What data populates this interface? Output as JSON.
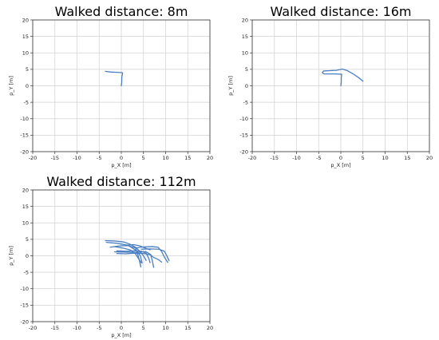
{
  "chart_data": [
    {
      "type": "line",
      "title": "Walked distance: 8m",
      "xlabel": "p_X [m]",
      "ylabel": "p_Y [m]",
      "xlim": [
        -20,
        20
      ],
      "ylim": [
        -20,
        20
      ],
      "xticks": [
        -20,
        -15,
        -10,
        -5,
        0,
        5,
        10,
        15,
        20
      ],
      "yticks": [
        -20,
        -15,
        -10,
        -5,
        0,
        5,
        10,
        15,
        20
      ],
      "grid": true,
      "color": "#4a7fc1",
      "series": [
        {
          "x": [
            0.0,
            0.1,
            0.1,
            0.2,
            0.3,
            0.2,
            -1.0,
            -2.5,
            -3.6
          ],
          "y": [
            0.0,
            1.2,
            2.4,
            3.3,
            3.9,
            4.0,
            4.1,
            4.2,
            4.4
          ]
        }
      ]
    },
    {
      "type": "line",
      "title": "Walked distance: 16m",
      "xlabel": "p_X [m]",
      "ylabel": "p_Y [m]",
      "xlim": [
        -20,
        20
      ],
      "ylim": [
        -20,
        20
      ],
      "xticks": [
        -20,
        -15,
        -10,
        -5,
        0,
        5,
        10,
        15,
        20
      ],
      "yticks": [
        -20,
        -15,
        -10,
        -5,
        0,
        5,
        10,
        15,
        20
      ],
      "grid": true,
      "color": "#4a7fc1",
      "series": [
        {
          "x": [
            0.0,
            0.1,
            0.1,
            0.2,
            -1.0,
            -2.5,
            -3.8,
            -4.2,
            -3.9,
            -2.5,
            -1.0,
            0.3,
            1.5,
            2.8,
            4.0,
            5.0
          ],
          "y": [
            0.0,
            1.2,
            2.4,
            3.5,
            3.6,
            3.6,
            3.6,
            4.0,
            4.5,
            4.6,
            4.7,
            5.1,
            4.6,
            3.6,
            2.5,
            1.4
          ]
        }
      ]
    },
    {
      "type": "line",
      "title": "Walked distance: 112m",
      "xlabel": "p_X [m]",
      "ylabel": "p_Y [m]",
      "xlim": [
        -20,
        20
      ],
      "ylim": [
        -20,
        20
      ],
      "xticks": [
        -20,
        -15,
        -10,
        -5,
        0,
        5,
        10,
        15,
        20
      ],
      "yticks": [
        -20,
        -15,
        -10,
        -5,
        0,
        5,
        10,
        15,
        20
      ],
      "grid": true,
      "color": "#4a7fc1",
      "series": [
        {
          "x": [
            -3.6,
            -1.5,
            0.5,
            2.0,
            3.2,
            4.2,
            5.0,
            5.6
          ],
          "y": [
            4.6,
            4.5,
            4.2,
            3.5,
            2.6,
            1.3,
            0.0,
            -1.4
          ]
        },
        {
          "x": [
            -3.4,
            -1.0,
            1.5,
            3.5,
            4.3,
            4.7
          ],
          "y": [
            4.1,
            3.8,
            3.2,
            1.5,
            0.0,
            -2.2
          ]
        },
        {
          "x": [
            -2.5,
            -0.5,
            1.5,
            3.2,
            3.7,
            4.1,
            4.4
          ],
          "y": [
            2.6,
            3.0,
            3.1,
            2.4,
            0.5,
            -1.5,
            -3.4
          ]
        },
        {
          "x": [
            -1.5,
            0.5,
            2.0,
            3.2,
            3.8,
            4.5
          ],
          "y": [
            2.8,
            2.3,
            1.8,
            0.6,
            -0.7,
            -2.1
          ]
        },
        {
          "x": [
            -1.0,
            1.0,
            3.0,
            4.5,
            5.6,
            6.2,
            6.5
          ],
          "y": [
            1.5,
            1.4,
            1.5,
            1.4,
            0.8,
            -0.8,
            -2.1
          ]
        },
        {
          "x": [
            -1.5,
            1.0,
            3.5,
            5.5,
            6.6,
            7.0,
            7.3
          ],
          "y": [
            1.2,
            1.1,
            1.0,
            1.3,
            0.4,
            -1.5,
            -3.5
          ]
        },
        {
          "x": [
            -1.0,
            1.0,
            3.0,
            5.0,
            6.6,
            7.3,
            8.3,
            9.1
          ],
          "y": [
            0.7,
            0.6,
            0.8,
            0.7,
            0.3,
            -0.5,
            -1.1,
            -1.9
          ]
        },
        {
          "x": [
            3.3,
            5.0,
            7.0,
            8.3,
            9.1,
            9.8,
            10.5
          ],
          "y": [
            2.4,
            2.7,
            2.8,
            2.6,
            1.3,
            -0.6,
            -2.0
          ]
        },
        {
          "x": [
            4.5,
            6.5,
            8.5,
            9.7,
            10.2,
            10.8
          ],
          "y": [
            2.0,
            2.1,
            2.0,
            1.4,
            0.2,
            -1.5
          ]
        },
        {
          "x": [
            1.0,
            2.8,
            4.2,
            5.5,
            6.5
          ],
          "y": [
            3.2,
            3.4,
            3.0,
            2.3,
            1.8
          ]
        }
      ]
    }
  ]
}
